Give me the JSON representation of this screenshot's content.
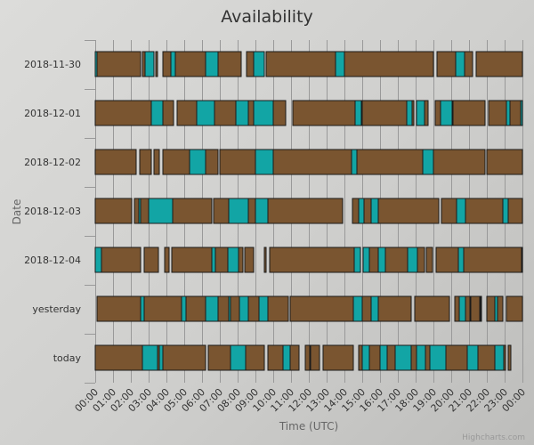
{
  "colors": {
    "available": "#7a5530",
    "unavailable": "#12a5a5",
    "border": "#1a1a1a",
    "grid": "#999999",
    "text": "#333333"
  },
  "credits": "Highcharts.com",
  "chart_data": {
    "type": "bar",
    "title": "Availability",
    "xlabel": "Time (UTC)",
    "ylabel": "Date",
    "xlim": [
      "00:00",
      "24:00"
    ],
    "grid": true,
    "categories": [
      "2018-11-30",
      "2018-12-01",
      "2018-12-02",
      "2018-12-03",
      "2018-12-04",
      "yesterday",
      "today"
    ],
    "x_ticks": [
      "00:00",
      "01:00",
      "02:00",
      "03:00",
      "04:00",
      "05:00",
      "06:00",
      "07:00",
      "08:00",
      "09:00",
      "10:00",
      "11:00",
      "12:00",
      "13:00",
      "14:00",
      "15:00",
      "16:00",
      "17:00",
      "18:00",
      "19:00",
      "20:00",
      "21:00",
      "22:00",
      "23:00",
      "00:00"
    ],
    "series": [
      {
        "status": "available",
        "color": "#7a5530",
        "intervals": [
          [
            [
              0.1,
              2.55
            ],
            [
              2.65,
              2.8
            ],
            [
              3.4,
              3.5
            ],
            [
              3.8,
              4.25
            ],
            [
              4.5,
              6.2
            ],
            [
              6.9,
              8.2
            ],
            [
              8.5,
              8.9
            ],
            [
              9.6,
              13.5
            ],
            [
              14.0,
              19.0
            ],
            [
              19.2,
              20.25
            ],
            [
              20.75,
              21.2
            ],
            [
              21.4,
              24.0
            ]
          ],
          [
            [
              0.0,
              3.15
            ],
            [
              3.8,
              4.4
            ],
            [
              4.6,
              5.7
            ],
            [
              6.7,
              7.9
            ],
            [
              8.6,
              8.9
            ],
            [
              10.0,
              10.7
            ],
            [
              11.1,
              14.6
            ],
            [
              15.0,
              17.5
            ],
            [
              17.8,
              17.9
            ],
            [
              18.5,
              18.7
            ],
            [
              19.1,
              19.4
            ],
            [
              20.1,
              21.9
            ],
            [
              22.1,
              23.1
            ],
            [
              23.3,
              23.9
            ]
          ],
          [
            [
              0.0,
              2.3
            ],
            [
              2.5,
              3.15
            ],
            [
              3.3,
              3.6
            ],
            [
              3.8,
              5.3
            ],
            [
              6.2,
              6.9
            ],
            [
              7.0,
              9.0
            ],
            [
              10.0,
              14.4
            ],
            [
              14.7,
              18.4
            ],
            [
              19.0,
              21.9
            ],
            [
              22.0,
              24.0
            ]
          ],
          [
            [
              0.0,
              2.05
            ],
            [
              2.2,
              2.45
            ],
            [
              2.55,
              3.0
            ],
            [
              4.35,
              6.55
            ],
            [
              6.65,
              7.5
            ],
            [
              8.6,
              9.0
            ],
            [
              9.7,
              13.9
            ],
            [
              14.45,
              14.8
            ],
            [
              15.1,
              15.5
            ],
            [
              15.9,
              19.3
            ],
            [
              19.45,
              20.3
            ],
            [
              20.8,
              22.9
            ],
            [
              23.2,
              24.0
            ]
          ],
          [
            [
              0.35,
              2.55
            ],
            [
              2.75,
              3.55
            ],
            [
              3.9,
              4.15
            ],
            [
              4.3,
              6.55
            ],
            [
              6.75,
              7.45
            ],
            [
              8.05,
              8.3
            ],
            [
              8.4,
              8.9
            ],
            [
              9.5,
              9.6
            ],
            [
              9.8,
              14.55
            ],
            [
              15.4,
              15.9
            ],
            [
              16.3,
              17.55
            ],
            [
              18.1,
              18.5
            ],
            [
              18.6,
              18.95
            ],
            [
              19.15,
              20.4
            ],
            [
              20.7,
              23.95
            ]
          ],
          [
            [
              0.1,
              2.55
            ],
            [
              2.75,
              4.85
            ],
            [
              5.1,
              6.2
            ],
            [
              6.9,
              7.5
            ],
            [
              7.6,
              8.1
            ],
            [
              8.6,
              9.2
            ],
            [
              9.7,
              10.85
            ],
            [
              10.95,
              14.5
            ],
            [
              15.0,
              15.5
            ],
            [
              15.9,
              17.75
            ],
            [
              17.95,
              19.9
            ],
            [
              20.2,
              20.45
            ],
            [
              20.8,
              21.05
            ],
            [
              21.1,
              21.6
            ],
            [
              21.65,
              21.7
            ],
            [
              22.0,
              22.45
            ],
            [
              22.6,
              22.9
            ],
            [
              23.1,
              24.0
            ]
          ],
          [
            [
              0.0,
              2.65
            ],
            [
              3.5,
              3.6
            ],
            [
              3.8,
              6.2
            ],
            [
              6.35,
              7.6
            ],
            [
              8.45,
              9.5
            ],
            [
              9.7,
              10.55
            ],
            [
              10.95,
              11.45
            ],
            [
              11.8,
              12.05
            ],
            [
              12.1,
              12.6
            ],
            [
              12.8,
              14.5
            ],
            [
              14.8,
              15.0
            ],
            [
              15.4,
              16.0
            ],
            [
              16.4,
              16.85
            ],
            [
              17.75,
              18.05
            ],
            [
              18.55,
              19.6
            ],
            [
              19.7,
              20.9
            ],
            [
              21.5,
              22.45
            ],
            [
              22.95,
              23.05
            ],
            [
              23.2,
              23.35
            ]
          ]
        ]
      },
      {
        "status": "unavailable",
        "color": "#12a5a5",
        "intervals": [
          [
            [
              0.0,
              0.1
            ],
            [
              2.8,
              3.3
            ],
            [
              4.25,
              4.5
            ],
            [
              6.2,
              6.9
            ],
            [
              8.9,
              9.5
            ],
            [
              13.5,
              14.0
            ],
            [
              20.25,
              20.75
            ]
          ],
          [
            [
              3.15,
              3.8
            ],
            [
              5.7,
              6.7
            ],
            [
              7.9,
              8.6
            ],
            [
              8.9,
              10.0
            ],
            [
              14.6,
              14.95
            ],
            [
              17.5,
              17.8
            ],
            [
              18.05,
              18.5
            ],
            [
              19.4,
              20.05
            ],
            [
              23.1,
              23.3
            ],
            [
              23.9,
              24.0
            ]
          ],
          [
            [
              5.3,
              6.2
            ],
            [
              9.0,
              10.0
            ],
            [
              14.4,
              14.7
            ],
            [
              18.4,
              19.0
            ]
          ],
          [
            [
              2.45,
              2.55
            ],
            [
              3.0,
              4.35
            ],
            [
              7.5,
              8.6
            ],
            [
              9.0,
              9.7
            ],
            [
              14.8,
              15.1
            ],
            [
              15.5,
              15.9
            ],
            [
              20.3,
              20.8
            ],
            [
              22.9,
              23.2
            ]
          ],
          [
            [
              0.0,
              0.35
            ],
            [
              6.55,
              6.75
            ],
            [
              7.45,
              8.05
            ],
            [
              14.55,
              14.9
            ],
            [
              15.05,
              15.4
            ],
            [
              15.9,
              16.3
            ],
            [
              17.55,
              18.1
            ],
            [
              20.4,
              20.7
            ],
            [
              23.95,
              24.0
            ]
          ],
          [
            [
              2.55,
              2.75
            ],
            [
              4.85,
              5.1
            ],
            [
              6.2,
              6.9
            ],
            [
              7.5,
              7.6
            ],
            [
              8.1,
              8.6
            ],
            [
              9.2,
              9.7
            ],
            [
              14.5,
              15.0
            ],
            [
              15.5,
              15.9
            ],
            [
              20.45,
              20.8
            ],
            [
              22.45,
              22.6
            ]
          ],
          [
            [
              2.65,
              3.5
            ],
            [
              3.6,
              3.8
            ],
            [
              7.6,
              8.45
            ],
            [
              10.55,
              10.95
            ],
            [
              15.0,
              15.4
            ],
            [
              16.0,
              16.4
            ],
            [
              16.85,
              17.75
            ],
            [
              18.05,
              18.55
            ],
            [
              18.8,
              19.7
            ],
            [
              20.9,
              21.5
            ],
            [
              22.45,
              22.95
            ]
          ]
        ]
      }
    ]
  }
}
